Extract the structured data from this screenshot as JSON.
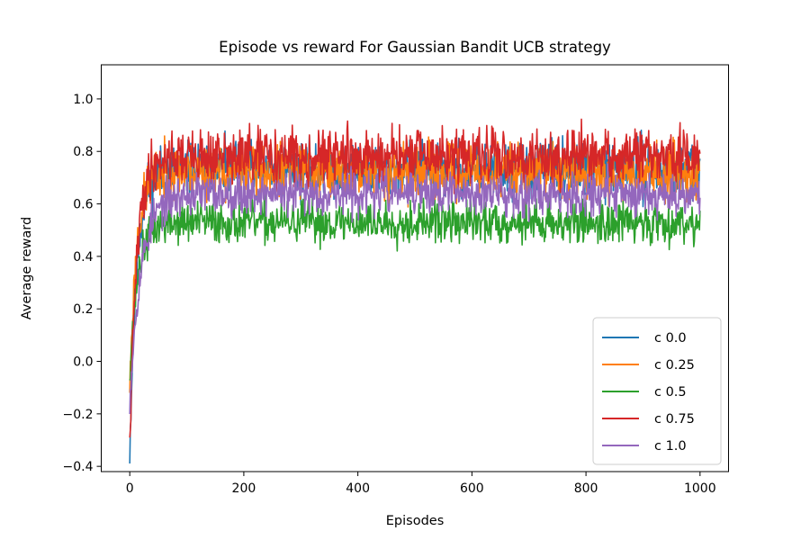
{
  "chart_data": {
    "type": "line",
    "title": "Episode vs reward For Gaussian Bandit UCB strategy",
    "xlabel": "Episodes",
    "ylabel": "Average reward",
    "xlim": [
      -50,
      1050
    ],
    "ylim": [
      -0.42,
      1.13
    ],
    "xticks": [
      0,
      200,
      400,
      600,
      800,
      1000
    ],
    "xtick_labels": [
      "0",
      "200",
      "400",
      "600",
      "800",
      "1000"
    ],
    "yticks": [
      -0.4,
      -0.2,
      0.0,
      0.2,
      0.4,
      0.6,
      0.8,
      1.0
    ],
    "ytick_labels": [
      "−0.4",
      "−0.2",
      "0.0",
      "0.2",
      "0.4",
      "0.6",
      "0.8",
      "1.0"
    ],
    "legend_position": "lower-right",
    "series": [
      {
        "name": "c 0.0",
        "color": "#1f77b4",
        "start": -0.35,
        "plateau": 0.73,
        "rise": 12,
        "noise": 0.09,
        "seed": 11
      },
      {
        "name": "c 0.25",
        "color": "#ff7f0e",
        "start": -0.1,
        "plateau": 0.72,
        "rise": 12,
        "noise": 0.09,
        "seed": 23
      },
      {
        "name": "c 0.5",
        "color": "#2ca02c",
        "start": -0.05,
        "plateau": 0.53,
        "rise": 14,
        "noise": 0.07,
        "seed": 37
      },
      {
        "name": "c 0.75",
        "color": "#d62728",
        "start": -0.33,
        "plateau": 0.78,
        "rise": 12,
        "noise": 0.09,
        "seed": 41
      },
      {
        "name": "c 1.0",
        "color": "#9467bd",
        "start": -0.15,
        "plateau": 0.64,
        "rise": 20,
        "noise": 0.07,
        "seed": 53
      }
    ],
    "x_range": [
      0,
      1000
    ]
  }
}
